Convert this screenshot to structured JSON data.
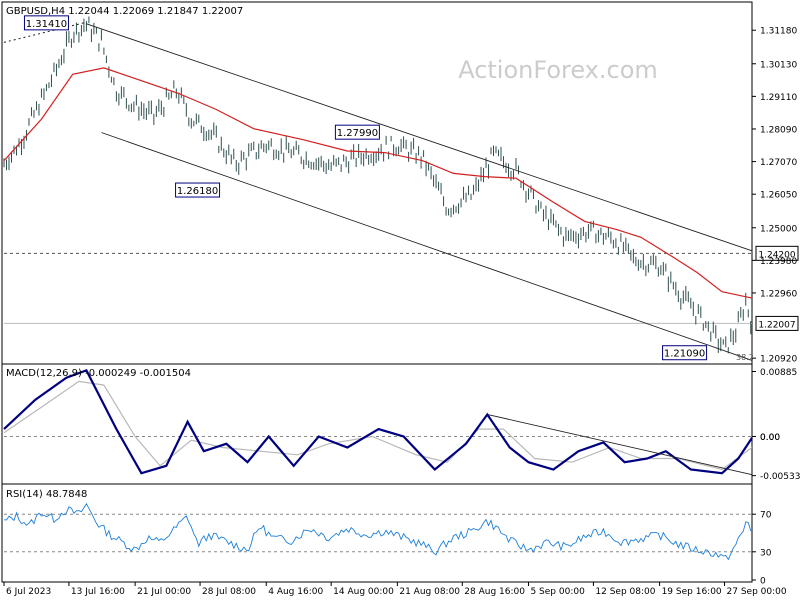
{
  "colors": {
    "price_bar": "#2f4f4f",
    "moving_average": "#d32020",
    "channel": "#222222",
    "macd_line": "#000080",
    "macd_signal": "#b8b8b8",
    "rsi_line": "#1e7fd8",
    "grid_dashed": "#888888",
    "frame": "#000000",
    "watermark": "#cccccc"
  },
  "watermark": "ActionForex.com",
  "chart_data": [
    {
      "type": "line",
      "panel": "price",
      "title": "GBPUSD,H4  1.22044  1.22069  1.21847  1.22007",
      "ylim": [
        1.208,
        1.32
      ],
      "y_ticks": [
        "1.31180",
        "1.30130",
        "1.29110",
        "1.28090",
        "1.27070",
        "1.26050",
        "1.25000",
        "1.23980",
        "1.22960",
        "1.20920"
      ],
      "x_ticks": [
        "6 Jul 2023",
        "13 Jul 16:00",
        "21 Jul 00:00",
        "28 Jul 08:00",
        "4 Aug 16:00",
        "14 Aug 00:00",
        "21 Aug 08:00",
        "28 Aug 16:00",
        "5 Sep 00:00",
        "12 Sep 08:00",
        "19 Sep 16:00",
        "27 Sep 00:00"
      ],
      "x_tick_index": [
        0,
        52,
        105,
        157,
        210,
        262,
        315,
        367,
        420,
        472,
        525,
        577
      ],
      "n_bars": 600,
      "price_path": [
        {
          "i": 0,
          "v": 1.27
        },
        {
          "i": 12,
          "v": 1.276
        },
        {
          "i": 25,
          "v": 1.286
        },
        {
          "i": 40,
          "v": 1.298
        },
        {
          "i": 55,
          "v": 1.311
        },
        {
          "i": 66,
          "v": 1.3138
        },
        {
          "i": 78,
          "v": 1.308
        },
        {
          "i": 90,
          "v": 1.293
        },
        {
          "i": 105,
          "v": 1.288
        },
        {
          "i": 120,
          "v": 1.285
        },
        {
          "i": 138,
          "v": 1.293
        },
        {
          "i": 150,
          "v": 1.284
        },
        {
          "i": 165,
          "v": 1.28
        },
        {
          "i": 185,
          "v": 1.27
        },
        {
          "i": 210,
          "v": 1.276
        },
        {
          "i": 235,
          "v": 1.273
        },
        {
          "i": 262,
          "v": 1.269
        },
        {
          "i": 290,
          "v": 1.273
        },
        {
          "i": 315,
          "v": 1.276
        },
        {
          "i": 335,
          "v": 1.272
        },
        {
          "i": 355,
          "v": 1.256
        },
        {
          "i": 375,
          "v": 1.26
        },
        {
          "i": 392,
          "v": 1.273
        },
        {
          "i": 410,
          "v": 1.268
        },
        {
          "i": 430,
          "v": 1.255
        },
        {
          "i": 450,
          "v": 1.247
        },
        {
          "i": 470,
          "v": 1.249
        },
        {
          "i": 490,
          "v": 1.246
        },
        {
          "i": 505,
          "v": 1.24
        },
        {
          "i": 525,
          "v": 1.238
        },
        {
          "i": 540,
          "v": 1.23
        },
        {
          "i": 560,
          "v": 1.221
        },
        {
          "i": 577,
          "v": 1.212
        },
        {
          "i": 587,
          "v": 1.218
        },
        {
          "i": 594,
          "v": 1.227
        },
        {
          "i": 599,
          "v": 1.22
        }
      ],
      "moving_average_path": [
        {
          "i": 0,
          "v": 1.271
        },
        {
          "i": 30,
          "v": 1.284
        },
        {
          "i": 55,
          "v": 1.298
        },
        {
          "i": 80,
          "v": 1.3
        },
        {
          "i": 110,
          "v": 1.296
        },
        {
          "i": 140,
          "v": 1.292
        },
        {
          "i": 170,
          "v": 1.287
        },
        {
          "i": 200,
          "v": 1.281
        },
        {
          "i": 240,
          "v": 1.2775
        },
        {
          "i": 275,
          "v": 1.274
        },
        {
          "i": 305,
          "v": 1.2735
        },
        {
          "i": 335,
          "v": 1.271
        },
        {
          "i": 360,
          "v": 1.267
        },
        {
          "i": 385,
          "v": 1.266
        },
        {
          "i": 410,
          "v": 1.2655
        },
        {
          "i": 440,
          "v": 1.258
        },
        {
          "i": 465,
          "v": 1.252
        },
        {
          "i": 490,
          "v": 1.2495
        },
        {
          "i": 510,
          "v": 1.247
        },
        {
          "i": 535,
          "v": 1.241
        },
        {
          "i": 555,
          "v": 1.236
        },
        {
          "i": 575,
          "v": 1.23
        },
        {
          "i": 599,
          "v": 1.228
        }
      ],
      "channel_upper": [
        {
          "i": 66,
          "v": 1.3138
        },
        {
          "i": 599,
          "v": 1.2428
        }
      ],
      "channel_lower": [
        {
          "i": 78,
          "v": 1.2798
        },
        {
          "i": 599,
          "v": 1.2085
        }
      ],
      "dotted_line": [
        {
          "i": 0,
          "v": 1.308
        },
        {
          "i": 64,
          "v": 1.3141
        }
      ],
      "h_lines": [
        {
          "value": 1.242,
          "style": "dashed"
        },
        {
          "value": 1.22007,
          "style": "solid-light"
        }
      ],
      "price_labels": [
        {
          "text": "1.31410",
          "i": 34,
          "value": 1.3141
        },
        {
          "text": "1.27990",
          "i": 283,
          "value": 1.2799
        },
        {
          "text": "1.26180",
          "i": 155,
          "value": 1.2618
        },
        {
          "text": "1.21090",
          "i": 545,
          "value": 1.2109
        }
      ],
      "axis_badges": [
        {
          "text": "1.24200",
          "value": 1.242
        },
        {
          "text": "1.22007",
          "value": 1.22007
        }
      ],
      "annotation": "38.2"
    },
    {
      "type": "line",
      "panel": "macd",
      "title": "MACD(12,26,9) -0.000249 -0.001504",
      "ylim": [
        -0.0062,
        0.0096
      ],
      "y_ticks": [
        "0.00885",
        "0.00",
        "0.00",
        "-0.005334"
      ],
      "zero_line": 0.0,
      "macd_path": [
        {
          "i": 0,
          "v": 0.001
        },
        {
          "i": 25,
          "v": 0.005
        },
        {
          "i": 50,
          "v": 0.008
        },
        {
          "i": 66,
          "v": 0.009
        },
        {
          "i": 90,
          "v": 0.001
        },
        {
          "i": 110,
          "v": -0.005
        },
        {
          "i": 130,
          "v": -0.004
        },
        {
          "i": 147,
          "v": 0.002
        },
        {
          "i": 160,
          "v": -0.002
        },
        {
          "i": 178,
          "v": -0.001
        },
        {
          "i": 195,
          "v": -0.0035
        },
        {
          "i": 212,
          "v": 0.0
        },
        {
          "i": 232,
          "v": -0.004
        },
        {
          "i": 252,
          "v": 0.0
        },
        {
          "i": 275,
          "v": -0.0015
        },
        {
          "i": 300,
          "v": 0.001
        },
        {
          "i": 320,
          "v": 0.0
        },
        {
          "i": 345,
          "v": -0.0045
        },
        {
          "i": 370,
          "v": -0.001
        },
        {
          "i": 387,
          "v": 0.003
        },
        {
          "i": 405,
          "v": -0.0015
        },
        {
          "i": 420,
          "v": -0.0035
        },
        {
          "i": 440,
          "v": -0.0045
        },
        {
          "i": 460,
          "v": -0.002
        },
        {
          "i": 480,
          "v": -0.0008
        },
        {
          "i": 497,
          "v": -0.0035
        },
        {
          "i": 515,
          "v": -0.003
        },
        {
          "i": 530,
          "v": -0.002
        },
        {
          "i": 550,
          "v": -0.0045
        },
        {
          "i": 575,
          "v": -0.005
        },
        {
          "i": 588,
          "v": -0.003
        },
        {
          "i": 599,
          "v": -0.0002
        }
      ],
      "signal_path": [
        {
          "i": 0,
          "v": 0.0005
        },
        {
          "i": 30,
          "v": 0.004
        },
        {
          "i": 60,
          "v": 0.0075
        },
        {
          "i": 80,
          "v": 0.007
        },
        {
          "i": 105,
          "v": 0.0
        },
        {
          "i": 125,
          "v": -0.004
        },
        {
          "i": 150,
          "v": -0.0005
        },
        {
          "i": 175,
          "v": -0.0015
        },
        {
          "i": 205,
          "v": -0.002
        },
        {
          "i": 235,
          "v": -0.0025
        },
        {
          "i": 260,
          "v": -0.001
        },
        {
          "i": 295,
          "v": 0.0
        },
        {
          "i": 330,
          "v": -0.0025
        },
        {
          "i": 355,
          "v": -0.0035
        },
        {
          "i": 380,
          "v": 0.001
        },
        {
          "i": 400,
          "v": 0.001
        },
        {
          "i": 425,
          "v": -0.003
        },
        {
          "i": 455,
          "v": -0.0035
        },
        {
          "i": 485,
          "v": -0.0015
        },
        {
          "i": 510,
          "v": -0.003
        },
        {
          "i": 540,
          "v": -0.003
        },
        {
          "i": 575,
          "v": -0.0045
        },
        {
          "i": 599,
          "v": -0.0015
        }
      ],
      "trendline": [
        {
          "i": 387,
          "v": 0.003
        },
        {
          "i": 599,
          "v": -0.0052
        }
      ]
    },
    {
      "type": "line",
      "panel": "rsi",
      "title": "RSI(14) 48.7848",
      "ylim": [
        0,
        100
      ],
      "y_ticks": [
        "70",
        "30",
        "0"
      ],
      "levels": [
        70,
        30
      ],
      "rsi_path": [
        {
          "i": 0,
          "v": 62
        },
        {
          "i": 10,
          "v": 68
        },
        {
          "i": 20,
          "v": 58
        },
        {
          "i": 30,
          "v": 72
        },
        {
          "i": 40,
          "v": 65
        },
        {
          "i": 50,
          "v": 75
        },
        {
          "i": 60,
          "v": 70
        },
        {
          "i": 66,
          "v": 80
        },
        {
          "i": 75,
          "v": 60
        },
        {
          "i": 85,
          "v": 48
        },
        {
          "i": 95,
          "v": 40
        },
        {
          "i": 105,
          "v": 32
        },
        {
          "i": 115,
          "v": 45
        },
        {
          "i": 125,
          "v": 40
        },
        {
          "i": 135,
          "v": 52
        },
        {
          "i": 147,
          "v": 68
        },
        {
          "i": 155,
          "v": 38
        },
        {
          "i": 165,
          "v": 48
        },
        {
          "i": 180,
          "v": 40
        },
        {
          "i": 195,
          "v": 32
        },
        {
          "i": 205,
          "v": 58
        },
        {
          "i": 215,
          "v": 45
        },
        {
          "i": 230,
          "v": 42
        },
        {
          "i": 245,
          "v": 55
        },
        {
          "i": 260,
          "v": 45
        },
        {
          "i": 275,
          "v": 55
        },
        {
          "i": 290,
          "v": 48
        },
        {
          "i": 305,
          "v": 52
        },
        {
          "i": 320,
          "v": 45
        },
        {
          "i": 335,
          "v": 38
        },
        {
          "i": 345,
          "v": 30
        },
        {
          "i": 360,
          "v": 45
        },
        {
          "i": 375,
          "v": 52
        },
        {
          "i": 387,
          "v": 63
        },
        {
          "i": 395,
          "v": 55
        },
        {
          "i": 405,
          "v": 42
        },
        {
          "i": 420,
          "v": 32
        },
        {
          "i": 435,
          "v": 40
        },
        {
          "i": 450,
          "v": 35
        },
        {
          "i": 465,
          "v": 46
        },
        {
          "i": 480,
          "v": 52
        },
        {
          "i": 495,
          "v": 40
        },
        {
          "i": 510,
          "v": 44
        },
        {
          "i": 525,
          "v": 48
        },
        {
          "i": 540,
          "v": 38
        },
        {
          "i": 555,
          "v": 32
        },
        {
          "i": 570,
          "v": 28
        },
        {
          "i": 578,
          "v": 22
        },
        {
          "i": 585,
          "v": 35
        },
        {
          "i": 592,
          "v": 52
        },
        {
          "i": 595,
          "v": 65
        },
        {
          "i": 599,
          "v": 49
        }
      ]
    }
  ]
}
